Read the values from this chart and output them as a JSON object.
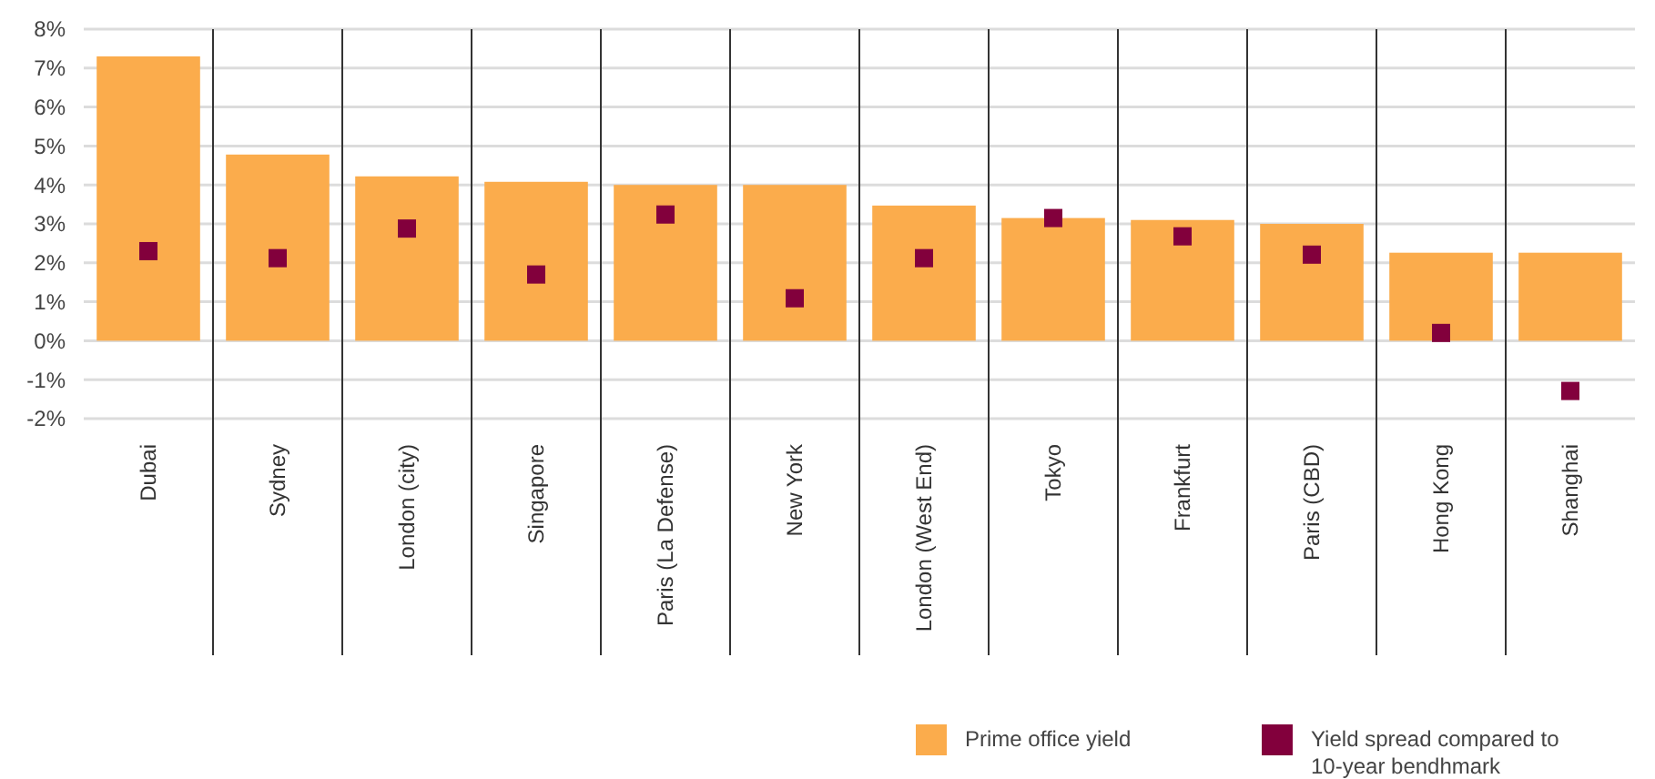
{
  "chart_data": {
    "type": "bar",
    "categories": [
      "Dubai",
      "Sydney",
      "London (city)",
      "Singapore",
      "Paris (La Defense)",
      "New York",
      "London (West End)",
      "Tokyo",
      "Frankfurt",
      "Paris (CBD)",
      "Hong Kong",
      "Shanghai"
    ],
    "series": [
      {
        "name": "Prime office yield",
        "color": "#fbac4c",
        "values": [
          7.3,
          4.78,
          4.22,
          4.08,
          4.0,
          4.0,
          3.47,
          3.15,
          3.1,
          3.0,
          2.26,
          2.26
        ]
      },
      {
        "name": "Yield spread compared to 10-year bendhmark",
        "type": "scatter",
        "color": "#82003c",
        "x": [
          "Dubai",
          "Sydney",
          "London (city)",
          "Singapore",
          "Paris (La Defense)",
          "New York",
          "London (West End)",
          "Tokyo",
          "Frankfurt",
          "Paris (CBD)",
          "Hong Kong",
          "Shanghai"
        ],
        "values": [
          2.3,
          2.12,
          2.88,
          1.7,
          3.24,
          1.09,
          2.12,
          3.15,
          2.68,
          2.21,
          0.2,
          -1.29
        ]
      }
    ],
    "ylim": [
      -2,
      8
    ],
    "yticks": [
      {
        "value": -2,
        "label": "-2%"
      },
      {
        "value": -1,
        "label": "-1%"
      },
      {
        "value": 0,
        "label": "0%"
      },
      {
        "value": 1,
        "label": "1%"
      },
      {
        "value": 2,
        "label": "2%"
      },
      {
        "value": 3,
        "label": "3%"
      },
      {
        "value": 4,
        "label": "4%"
      },
      {
        "value": 5,
        "label": "5%"
      },
      {
        "value": 6,
        "label": "6%"
      },
      {
        "value": 7,
        "label": "7%"
      },
      {
        "value": 8,
        "label": "8%"
      }
    ],
    "grid": true,
    "legend": "bottom right",
    "marker": "square"
  }
}
